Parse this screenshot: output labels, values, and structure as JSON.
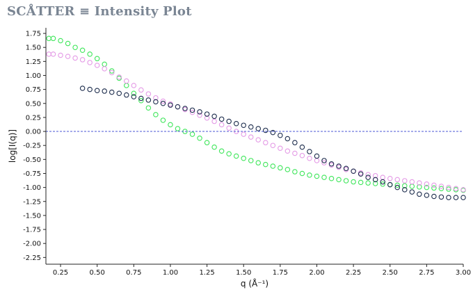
{
  "header": {
    "title": "SCÅTTER ≡ Intensity Plot"
  },
  "colors": {
    "series_navy": "#1c2c4c",
    "series_green": "#3ee65a",
    "series_violet": "#e49ae6",
    "zero_line": "#4a56d6",
    "axis": "#222222"
  },
  "chart_data": {
    "type": "scatter",
    "xlabel": "q (Å⁻¹)",
    "ylabel": "log[I(q)]",
    "xlim": [
      0.15,
      3.0
    ],
    "ylim": [
      -2.37,
      1.85
    ],
    "x_ticks": [
      "0.25",
      "0.50",
      "0.75",
      "1.00",
      "1.25",
      "1.50",
      "1.75",
      "2.00",
      "2.25",
      "2.50",
      "2.75",
      "3.00"
    ],
    "y_ticks": [
      "1.75",
      "1.50",
      "1.25",
      "1.00",
      "0.75",
      "0.50",
      "0.25",
      "0.00",
      "-0.25",
      "-0.50",
      "-0.75",
      "-1.00",
      "-1.25",
      "-1.50",
      "-1.75",
      "-2.00",
      "-2.25"
    ],
    "reference_lines": [
      {
        "axis": "y",
        "value": 0.0,
        "style": "dashed"
      }
    ],
    "series": [
      {
        "color": "#1c2c4c",
        "x": [
          0.4,
          0.45,
          0.5,
          0.55,
          0.6,
          0.65,
          0.7,
          0.75,
          0.8,
          0.85,
          0.9,
          0.95,
          1.0,
          1.05,
          1.1,
          1.15,
          1.2,
          1.25,
          1.3,
          1.35,
          1.4,
          1.45,
          1.5,
          1.55,
          1.6,
          1.65,
          1.7,
          1.75,
          1.8,
          1.85,
          1.9,
          1.95,
          2.0,
          2.05,
          2.1,
          2.15,
          2.2,
          2.25,
          2.3,
          2.35,
          2.4,
          2.45,
          2.5,
          2.55,
          2.6,
          2.65,
          2.7,
          2.75,
          2.8,
          2.85,
          2.9,
          2.95,
          3.0
        ],
        "y": [
          0.77,
          0.75,
          0.73,
          0.72,
          0.7,
          0.68,
          0.65,
          0.62,
          0.59,
          0.56,
          0.53,
          0.5,
          0.47,
          0.44,
          0.41,
          0.38,
          0.35,
          0.31,
          0.27,
          0.22,
          0.18,
          0.14,
          0.11,
          0.08,
          0.05,
          0.02,
          -0.02,
          -0.07,
          -0.13,
          -0.2,
          -0.28,
          -0.36,
          -0.44,
          -0.52,
          -0.58,
          -0.62,
          -0.66,
          -0.71,
          -0.76,
          -0.82,
          -0.86,
          -0.9,
          -0.95,
          -1.0,
          -1.04,
          -1.08,
          -1.12,
          -1.14,
          -1.16,
          -1.17,
          -1.18,
          -1.18,
          -1.18
        ]
      },
      {
        "color": "#3ee65a",
        "x": [
          0.17,
          0.2,
          0.25,
          0.3,
          0.35,
          0.4,
          0.45,
          0.5,
          0.55,
          0.6,
          0.65,
          0.7,
          0.75,
          0.8,
          0.85,
          0.9,
          0.95,
          1.0,
          1.05,
          1.1,
          1.15,
          1.2,
          1.25,
          1.3,
          1.35,
          1.4,
          1.45,
          1.5,
          1.55,
          1.6,
          1.65,
          1.7,
          1.75,
          1.8,
          1.85,
          1.9,
          1.95,
          2.0,
          2.05,
          2.1,
          2.15,
          2.2,
          2.25,
          2.3,
          2.35,
          2.4,
          2.45,
          2.5,
          2.55,
          2.6,
          2.65,
          2.7,
          2.75,
          2.8,
          2.85,
          2.9,
          2.95,
          3.0
        ],
        "y": [
          1.66,
          1.66,
          1.62,
          1.57,
          1.5,
          1.45,
          1.38,
          1.3,
          1.2,
          1.08,
          0.95,
          0.82,
          0.68,
          0.55,
          0.42,
          0.3,
          0.2,
          0.12,
          0.05,
          0.0,
          -0.05,
          -0.12,
          -0.2,
          -0.28,
          -0.35,
          -0.4,
          -0.44,
          -0.48,
          -0.52,
          -0.56,
          -0.59,
          -0.62,
          -0.65,
          -0.68,
          -0.72,
          -0.75,
          -0.78,
          -0.8,
          -0.82,
          -0.84,
          -0.86,
          -0.88,
          -0.9,
          -0.91,
          -0.92,
          -0.93,
          -0.94,
          -0.95,
          -0.96,
          -0.97,
          -0.98,
          -0.99,
          -1.0,
          -1.01,
          -1.02,
          -1.03,
          -1.04,
          -1.05
        ]
      },
      {
        "color": "#e49ae6",
        "x": [
          0.17,
          0.2,
          0.25,
          0.3,
          0.35,
          0.4,
          0.45,
          0.5,
          0.55,
          0.6,
          0.65,
          0.7,
          0.75,
          0.8,
          0.85,
          0.9,
          0.95,
          1.0,
          1.05,
          1.1,
          1.15,
          1.2,
          1.25,
          1.3,
          1.35,
          1.4,
          1.45,
          1.5,
          1.55,
          1.6,
          1.65,
          1.7,
          1.75,
          1.8,
          1.85,
          1.9,
          1.95,
          2.0,
          2.05,
          2.1,
          2.15,
          2.2,
          2.25,
          2.3,
          2.35,
          2.4,
          2.45,
          2.5,
          2.55,
          2.6,
          2.65,
          2.7,
          2.75,
          2.8,
          2.85,
          2.9,
          2.95,
          3.0
        ],
        "y": [
          1.38,
          1.38,
          1.36,
          1.34,
          1.31,
          1.28,
          1.23,
          1.18,
          1.12,
          1.05,
          0.97,
          0.9,
          0.82,
          0.74,
          0.67,
          0.6,
          0.54,
          0.49,
          0.44,
          0.39,
          0.34,
          0.29,
          0.24,
          0.18,
          0.12,
          0.06,
          0.0,
          -0.05,
          -0.1,
          -0.15,
          -0.2,
          -0.25,
          -0.3,
          -0.35,
          -0.39,
          -0.43,
          -0.48,
          -0.52,
          -0.56,
          -0.6,
          -0.64,
          -0.68,
          -0.71,
          -0.74,
          -0.77,
          -0.79,
          -0.82,
          -0.84,
          -0.86,
          -0.88,
          -0.9,
          -0.92,
          -0.94,
          -0.96,
          -0.98,
          -1.0,
          -1.02,
          -1.04
        ]
      }
    ]
  }
}
